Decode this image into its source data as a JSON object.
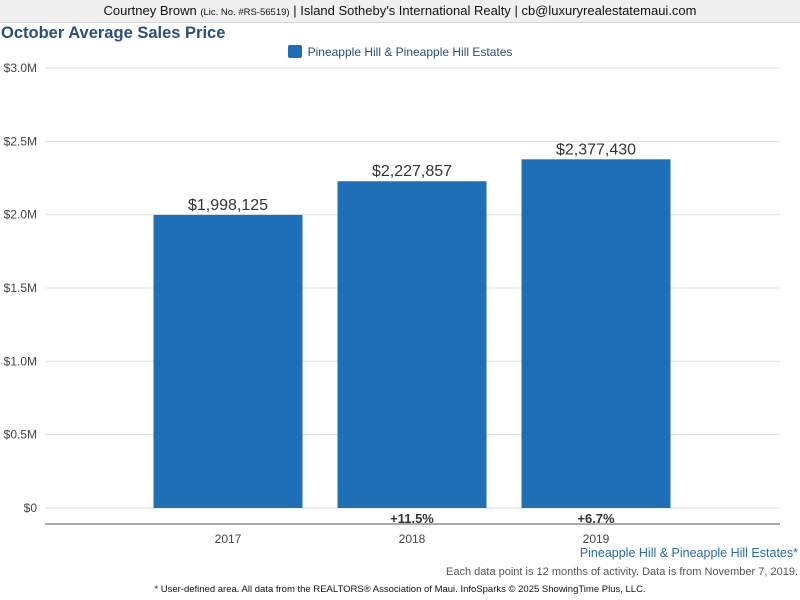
{
  "header": {
    "name": "Courtney Brown",
    "license": "(Lic. No. #RS-56519)",
    "sep1": "|",
    "company": "Island Sotheby's International Realty",
    "sep2": "|",
    "email": "cb@luxuryrealestatemaui.com"
  },
  "chart_data": {
    "type": "bar",
    "title": "October Average Sales Price",
    "categories": [
      "2017",
      "2018",
      "2019"
    ],
    "series": [
      {
        "name": "Pineapple Hill & Pineapple Hill Estates",
        "values": [
          1998125,
          2227857,
          2377430
        ],
        "value_labels": [
          "$1,998,125",
          "$2,227,857",
          "$2,377,430"
        ],
        "color": "#1f6fb7"
      }
    ],
    "change_labels": [
      "",
      "+11.5%",
      "+6.7%"
    ],
    "yticks": [
      0,
      500000,
      1000000,
      1500000,
      2000000,
      2500000,
      3000000
    ],
    "ytick_labels": [
      "$0",
      "$0.5M",
      "$1.0M",
      "$1.5M",
      "$2.0M",
      "$2.5M",
      "$3.0M"
    ],
    "ylim": [
      0,
      3000000
    ],
    "grid": true,
    "legend": "top-center"
  },
  "footer": {
    "area_label": "Pineapple Hill & Pineapple Hill Estates*",
    "note": "Each data point is 12 months of activity. Data is from November 7, 2019.",
    "source": "* User-defined area. All data from the REALTORS® Association of Maui. InfoSparks © 2025 ShowingTime Plus, LLC."
  }
}
